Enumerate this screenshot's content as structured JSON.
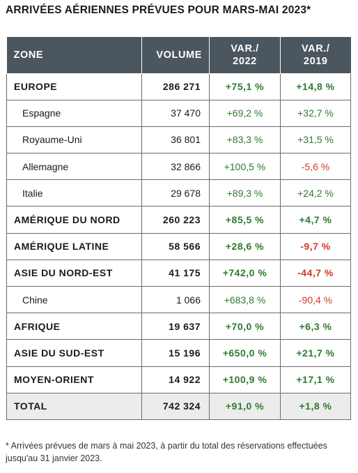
{
  "title": "ARRIVÉES AÉRIENNES PRÉVUES POUR MARS-MAI 2023*",
  "headers": {
    "zone": "ZONE",
    "volume": "VOLUME",
    "var2022_line1": "VAR./",
    "var2022_line2": "2022",
    "var2019_line1": "VAR./",
    "var2019_line2": "2019"
  },
  "rows": [
    {
      "zone": "EUROPE",
      "volume": "286 271",
      "var2022": "+75,1 %",
      "var2019": "+14,8 %"
    },
    {
      "zone": "Espagne",
      "volume": "37 470",
      "var2022": "+69,2 %",
      "var2019": "+32,7 %"
    },
    {
      "zone": "Royaume-Uni",
      "volume": "36 801",
      "var2022": "+83,3 %",
      "var2019": "+31,5 %"
    },
    {
      "zone": "Allemagne",
      "volume": "32 866",
      "var2022": "+100,5 %",
      "var2019": "-5,6 %"
    },
    {
      "zone": "Italie",
      "volume": "29 678",
      "var2022": "+89,3 %",
      "var2019": "+24,2 %"
    },
    {
      "zone": "AMÉRIQUE DU NORD",
      "volume": "260 223",
      "var2022": "+85,5 %",
      "var2019": "+4,7 %"
    },
    {
      "zone": "AMÉRIQUE LATINE",
      "volume": "58 566",
      "var2022": "+28,6 %",
      "var2019": "-9,7 %"
    },
    {
      "zone": "ASIE DU NORD-EST",
      "volume": "41 175",
      "var2022": "+742,0 %",
      "var2019": "-44,7 %"
    },
    {
      "zone": "Chine",
      "volume": "1 066",
      "var2022": "+683,8 %",
      "var2019": "-90,4 %"
    },
    {
      "zone": "AFRIQUE",
      "volume": "19 637",
      "var2022": "+70,0 %",
      "var2019": "+6,3 %"
    },
    {
      "zone": "ASIE DU SUD-EST",
      "volume": "15 196",
      "var2022": "+650,0 %",
      "var2019": "+21,7 %"
    },
    {
      "zone": "MOYEN-ORIENT",
      "volume": "14 922",
      "var2022": "+100,9 %",
      "var2019": "+17,1 %"
    },
    {
      "zone": "TOTAL",
      "volume": "742 324",
      "var2022": "+91,0 %",
      "var2019": "+1,8 %"
    }
  ],
  "colors": {
    "header_bg": "#4c565e",
    "positive": "#2e7a2e",
    "negative": "#d23a2a",
    "total_bg": "#ececec"
  },
  "footnote": "* Arrivées prévues de mars à mai 2023, à partir du total des réservations effectuées jusqu'au 31 janvier 2023."
}
